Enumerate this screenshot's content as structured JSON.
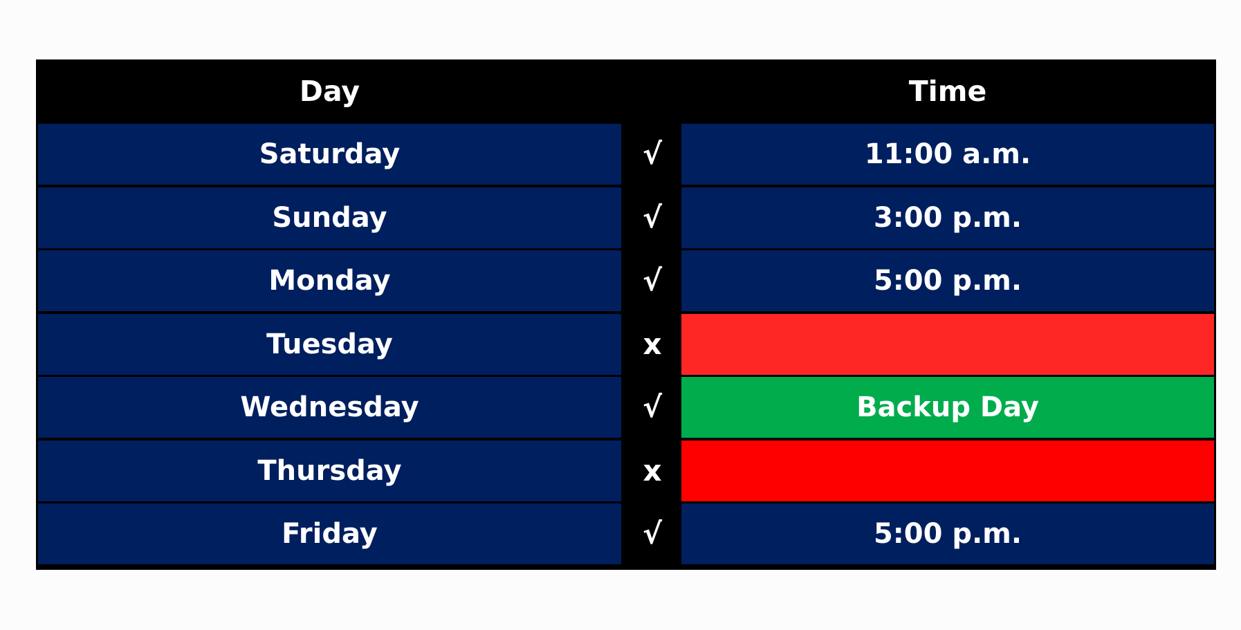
{
  "header": {
    "day_label": "Day",
    "mark_label": "",
    "time_label": "Time"
  },
  "colors": {
    "header_bg": "#000000",
    "day_bg": "#001f5f",
    "default_time_bg": "#001f5f",
    "tuesday_time_bg": "#ff2626",
    "wednesday_time_bg": "#00ac4c",
    "thursday_time_bg": "#fe0000"
  },
  "rows": [
    {
      "day": "Saturday",
      "mark": "√",
      "time": "11:00 a.m.",
      "time_bg": "#001f5f"
    },
    {
      "day": "Sunday",
      "mark": "√",
      "time": "3:00 p.m.",
      "time_bg": "#001f5f"
    },
    {
      "day": "Monday",
      "mark": "√",
      "time": "5:00 p.m.",
      "time_bg": "#001f5f"
    },
    {
      "day": "Tuesday",
      "mark": "x",
      "time": "",
      "time_bg": "#ff2626"
    },
    {
      "day": "Wednesday",
      "mark": "√",
      "time": "Backup Day",
      "time_bg": "#00ac4c"
    },
    {
      "day": "Thursday",
      "mark": "x",
      "time": "",
      "time_bg": "#fe0000"
    },
    {
      "day": "Friday",
      "mark": "√",
      "time": "5:00 p.m.",
      "time_bg": "#001f5f"
    }
  ]
}
